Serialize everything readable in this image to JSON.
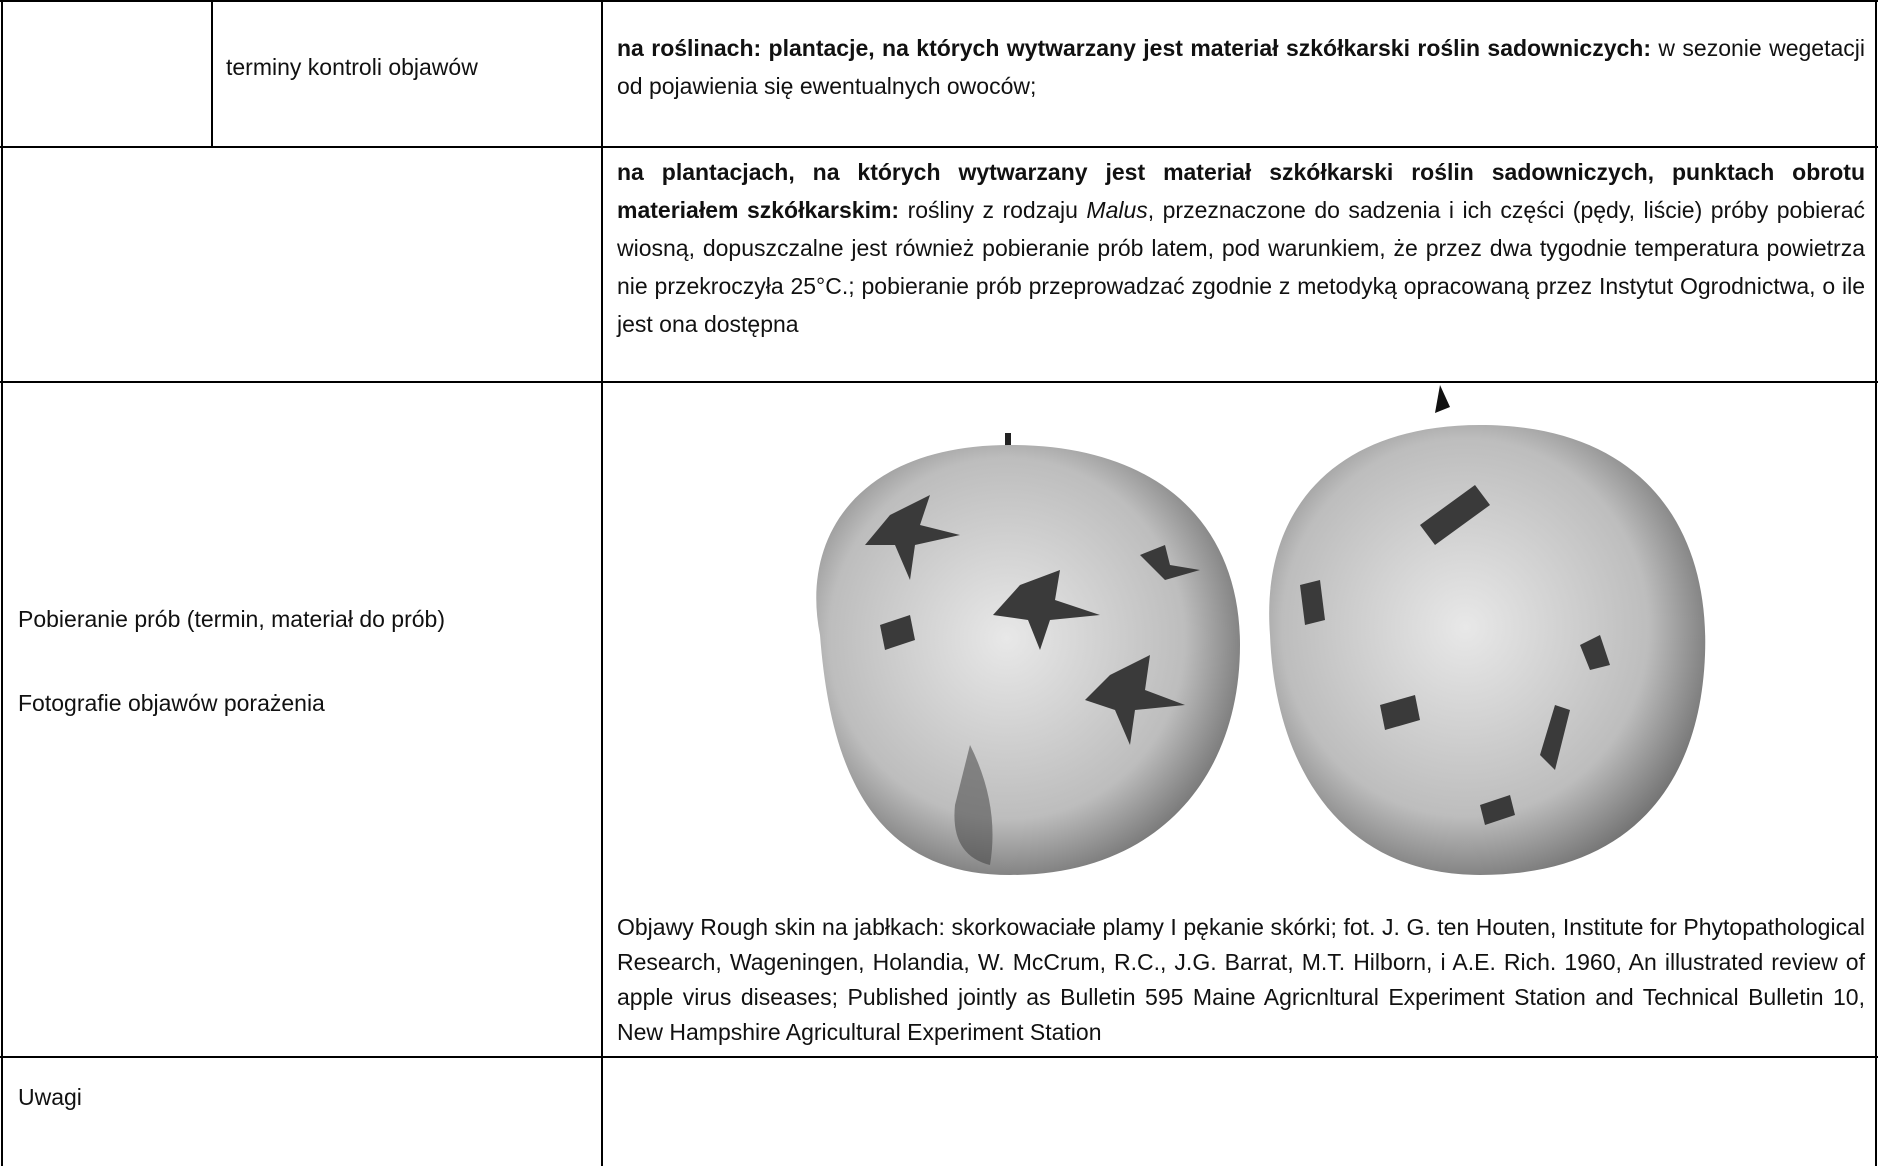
{
  "rows": [
    {
      "label": "terminy kontroli objawów",
      "bold_lead": "na roślinach: plantacje, na których wytwarzany jest materiał szkółkarski roślin sadowniczych:",
      "text": "w sezonie wegetacji od pojawienia się ewentualnych owoców;"
    },
    {
      "label": "Pobieranie prób (termin, materiał do prób)",
      "bold_lead": "na plantacjach, na których wytwarzany jest materiał szkółkarski roślin sadowniczych, punktach obrotu materiałem szkółkarskim:",
      "text_before": "rośliny z rodzaju",
      "italic": "Malus",
      "text_after": ", przeznaczone do sadzenia i ich części (pędy, liście) próby pobierać wiosną, dopuszczalne jest również pobieranie prób latem, pod warunkiem, że przez dwa tygodnie temperatura powietrza nie przekroczyła 25°C.; pobieranie prób przeprowadzać zgodnie z metodyką opracowaną przez Instytut Ogrodnictwa, o ile jest ona dostępna"
    },
    {
      "label": "Fotografie objawów porażenia",
      "caption": "Objawy Rough skin na jabłkach: skorkowaciałe plamy I pękanie skórki; fot. J. G. ten Houten, Institute for Phytopathological Research, Wageningen, Holandia, W. McCrum, R.C., J.G. Barrat, M.T. Hilborn, i A.E. Rich. 1960, An illustrated review of apple virus diseases; Published jointly as Bulletin 595 Maine Agricnltural Experiment Station and Technical Bulletin 10, New Hampshire Agricultural Experiment Station"
    },
    {
      "label": "Uwagi"
    }
  ]
}
